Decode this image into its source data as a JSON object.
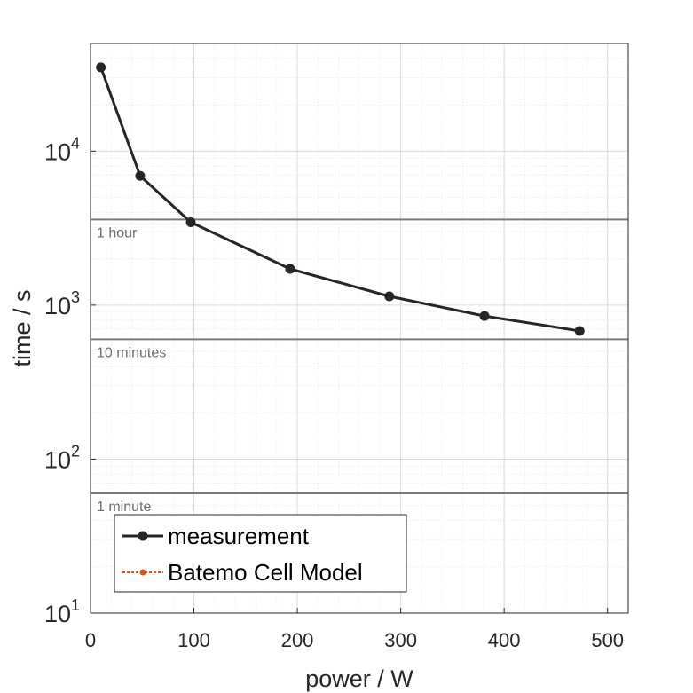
{
  "chart_data": {
    "type": "line",
    "xlabel": "power / W",
    "ylabel": "time / s",
    "xlim": [
      0,
      520
    ],
    "ylim": [
      10,
      50000
    ],
    "yscale": "log",
    "grid": true,
    "minor_grid": true,
    "x_ticks": [
      0,
      100,
      200,
      300,
      400,
      500
    ],
    "y_ticks": [
      {
        "value": 10,
        "base": "10",
        "exp": "1"
      },
      {
        "value": 100,
        "base": "10",
        "exp": "2"
      },
      {
        "value": 1000,
        "base": "10",
        "exp": "3"
      },
      {
        "value": 10000,
        "base": "10",
        "exp": "4"
      }
    ],
    "reference_lines": [
      {
        "y": 3600,
        "label": "1 hour"
      },
      {
        "y": 600,
        "label": "10 minutes"
      },
      {
        "y": 60,
        "label": "1 minute"
      }
    ],
    "series": [
      {
        "name": "measurement",
        "color": "#262626",
        "x": [
          10,
          48,
          97,
          193,
          289,
          381,
          473
        ],
        "y": [
          35000,
          6900,
          3450,
          1720,
          1140,
          850,
          680
        ]
      },
      {
        "name": "Batemo Cell Model",
        "color": "#d95319",
        "x": [],
        "y": []
      }
    ],
    "legend_position": "bottom-left"
  }
}
